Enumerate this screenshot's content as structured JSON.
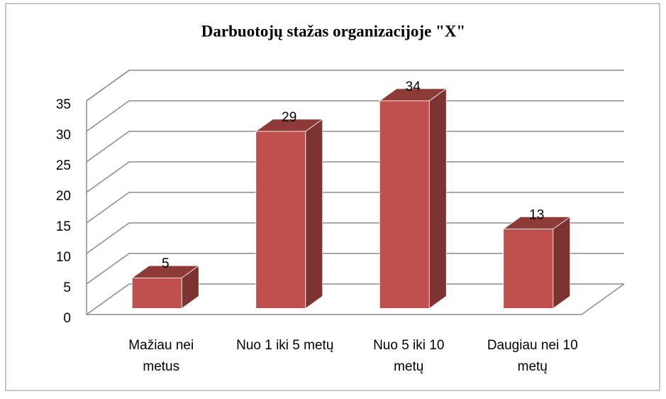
{
  "chart_data": {
    "type": "bar",
    "title": "Darbuotojų stažas organizacijoje \"X\"",
    "categories": [
      "Mažiau nei metus",
      "Nuo 1 iki 5 metų",
      "Nuo 5 iki 10 metų",
      "Daugiau nei 10 metų"
    ],
    "values": [
      5,
      29,
      34,
      13
    ],
    "color": "#c0504d",
    "ylim": [
      0,
      35
    ],
    "yticks": [
      0,
      5,
      10,
      15,
      20,
      25,
      30,
      35
    ],
    "grid": true
  }
}
